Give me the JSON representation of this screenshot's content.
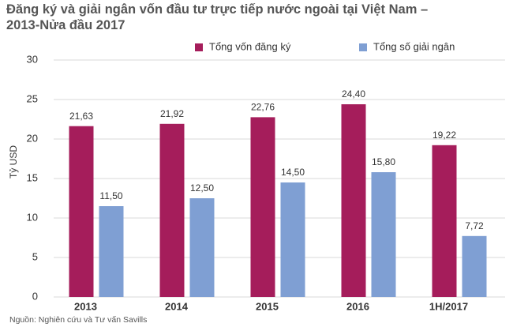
{
  "chart_data": {
    "type": "bar",
    "title": [
      "Đăng ký và giải ngân vốn đầu tư trực tiếp nước ngoài tại Việt Nam –",
      "2013-Nửa đầu 2017"
    ],
    "y_label": "Tỷ USD",
    "source": "Nguồn: Nghiên cứu và Tư vấn Savills",
    "categories": [
      "2013",
      "2014",
      "2015",
      "2016",
      "1H/2017"
    ],
    "series": [
      {
        "name": "Tổng vốn đăng ký",
        "color": "#a51d5b",
        "values": [
          21.63,
          21.92,
          22.76,
          24.4,
          19.22
        ],
        "value_labels": [
          "21,63",
          "21,92",
          "22,76",
          "24,40",
          "19,22"
        ]
      },
      {
        "name": "Tổng số giải ngân",
        "color": "#7f9fd3",
        "values": [
          11.5,
          12.5,
          14.5,
          15.8,
          7.72
        ],
        "value_labels": [
          "11,50",
          "12,50",
          "14,50",
          "15,80",
          "7,72"
        ]
      }
    ],
    "ylim": [
      0,
      30
    ],
    "yticks": [
      0,
      5,
      10,
      15,
      20,
      25,
      30
    ],
    "grid": true
  }
}
